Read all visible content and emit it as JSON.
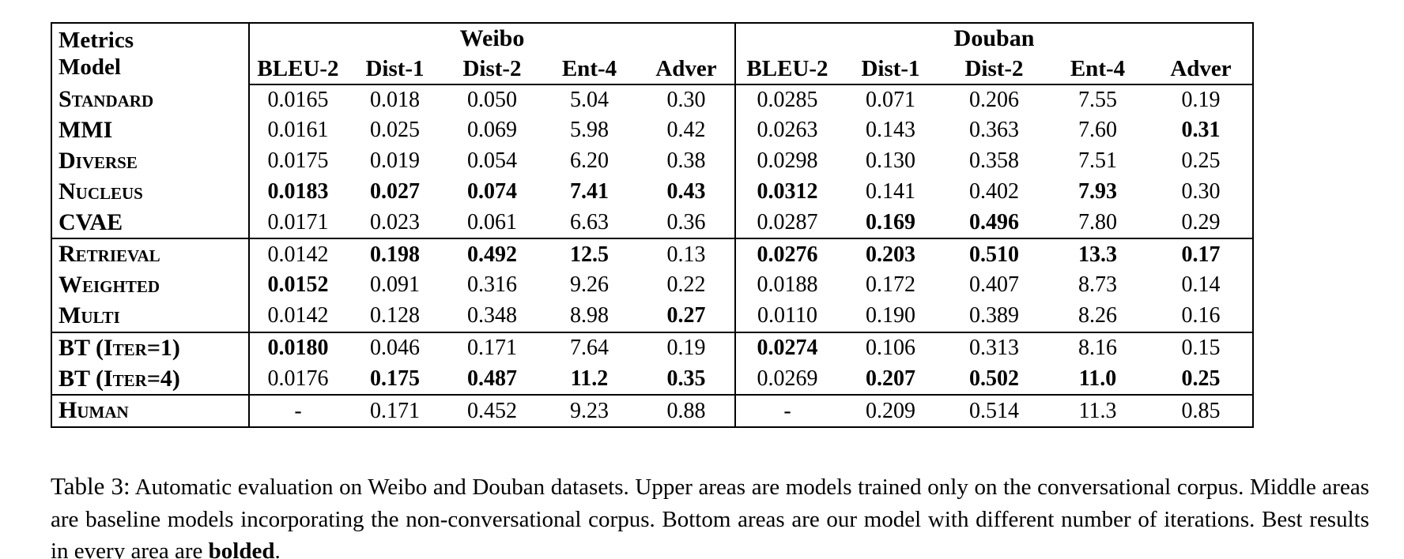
{
  "table": {
    "corner": {
      "line1": "Metrics",
      "line2": "Model"
    },
    "group_headers": [
      "Weibo",
      "Douban"
    ],
    "metric_columns": [
      "BLEU-2",
      "Dist-1",
      "Dist-2",
      "Ent-4",
      "Adver"
    ],
    "sections": [
      {
        "rows": [
          {
            "model": "Standard",
            "cells": [
              {
                "t": "0.0165",
                "b": false
              },
              {
                "t": "0.018",
                "b": false
              },
              {
                "t": "0.050",
                "b": false
              },
              {
                "t": "5.04",
                "b": false
              },
              {
                "t": "0.30",
                "b": false
              },
              {
                "t": "0.0285",
                "b": false
              },
              {
                "t": "0.071",
                "b": false
              },
              {
                "t": "0.206",
                "b": false
              },
              {
                "t": "7.55",
                "b": false
              },
              {
                "t": "0.19",
                "b": false
              }
            ]
          },
          {
            "model": "MMI",
            "cells": [
              {
                "t": "0.0161",
                "b": false
              },
              {
                "t": "0.025",
                "b": false
              },
              {
                "t": "0.069",
                "b": false
              },
              {
                "t": "5.98",
                "b": false
              },
              {
                "t": "0.42",
                "b": false
              },
              {
                "t": "0.0263",
                "b": false
              },
              {
                "t": "0.143",
                "b": false
              },
              {
                "t": "0.363",
                "b": false
              },
              {
                "t": "7.60",
                "b": false
              },
              {
                "t": "0.31",
                "b": true
              }
            ]
          },
          {
            "model": "Diverse",
            "cells": [
              {
                "t": "0.0175",
                "b": false
              },
              {
                "t": "0.019",
                "b": false
              },
              {
                "t": "0.054",
                "b": false
              },
              {
                "t": "6.20",
                "b": false
              },
              {
                "t": "0.38",
                "b": false
              },
              {
                "t": "0.0298",
                "b": false
              },
              {
                "t": "0.130",
                "b": false
              },
              {
                "t": "0.358",
                "b": false
              },
              {
                "t": "7.51",
                "b": false
              },
              {
                "t": "0.25",
                "b": false
              }
            ]
          },
          {
            "model": "Nucleus",
            "cells": [
              {
                "t": "0.0183",
                "b": true
              },
              {
                "t": "0.027",
                "b": true
              },
              {
                "t": "0.074",
                "b": true
              },
              {
                "t": "7.41",
                "b": true
              },
              {
                "t": "0.43",
                "b": true
              },
              {
                "t": "0.0312",
                "b": true
              },
              {
                "t": "0.141",
                "b": false
              },
              {
                "t": "0.402",
                "b": false
              },
              {
                "t": "7.93",
                "b": true
              },
              {
                "t": "0.30",
                "b": false
              }
            ]
          },
          {
            "model": "CVAE",
            "cells": [
              {
                "t": "0.0171",
                "b": false
              },
              {
                "t": "0.023",
                "b": false
              },
              {
                "t": "0.061",
                "b": false
              },
              {
                "t": "6.63",
                "b": false
              },
              {
                "t": "0.36",
                "b": false
              },
              {
                "t": "0.0287",
                "b": false
              },
              {
                "t": "0.169",
                "b": true
              },
              {
                "t": "0.496",
                "b": true
              },
              {
                "t": "7.80",
                "b": false
              },
              {
                "t": "0.29",
                "b": false
              }
            ]
          }
        ]
      },
      {
        "rows": [
          {
            "model": "Retrieval",
            "cells": [
              {
                "t": "0.0142",
                "b": false
              },
              {
                "t": "0.198",
                "b": true
              },
              {
                "t": "0.492",
                "b": true
              },
              {
                "t": "12.5",
                "b": true
              },
              {
                "t": "0.13",
                "b": false
              },
              {
                "t": "0.0276",
                "b": true
              },
              {
                "t": "0.203",
                "b": true
              },
              {
                "t": "0.510",
                "b": true
              },
              {
                "t": "13.3",
                "b": true
              },
              {
                "t": "0.17",
                "b": true
              }
            ]
          },
          {
            "model": "Weighted",
            "cells": [
              {
                "t": "0.0152",
                "b": true
              },
              {
                "t": "0.091",
                "b": false
              },
              {
                "t": "0.316",
                "b": false
              },
              {
                "t": "9.26",
                "b": false
              },
              {
                "t": "0.22",
                "b": false
              },
              {
                "t": "0.0188",
                "b": false
              },
              {
                "t": "0.172",
                "b": false
              },
              {
                "t": "0.407",
                "b": false
              },
              {
                "t": "8.73",
                "b": false
              },
              {
                "t": "0.14",
                "b": false
              }
            ]
          },
          {
            "model": "Multi",
            "cells": [
              {
                "t": "0.0142",
                "b": false
              },
              {
                "t": "0.128",
                "b": false
              },
              {
                "t": "0.348",
                "b": false
              },
              {
                "t": "8.98",
                "b": false
              },
              {
                "t": "0.27",
                "b": true
              },
              {
                "t": "0.0110",
                "b": false
              },
              {
                "t": "0.190",
                "b": false
              },
              {
                "t": "0.389",
                "b": false
              },
              {
                "t": "8.26",
                "b": false
              },
              {
                "t": "0.16",
                "b": false
              }
            ]
          }
        ]
      },
      {
        "rows": [
          {
            "model": "BT (Iter=1)",
            "cells": [
              {
                "t": "0.0180",
                "b": true
              },
              {
                "t": "0.046",
                "b": false
              },
              {
                "t": "0.171",
                "b": false
              },
              {
                "t": "7.64",
                "b": false
              },
              {
                "t": "0.19",
                "b": false
              },
              {
                "t": "0.0274",
                "b": true
              },
              {
                "t": "0.106",
                "b": false
              },
              {
                "t": "0.313",
                "b": false
              },
              {
                "t": "8.16",
                "b": false
              },
              {
                "t": "0.15",
                "b": false
              }
            ]
          },
          {
            "model": "BT (Iter=4)",
            "cells": [
              {
                "t": "0.0176",
                "b": false
              },
              {
                "t": "0.175",
                "b": true
              },
              {
                "t": "0.487",
                "b": true
              },
              {
                "t": "11.2",
                "b": true
              },
              {
                "t": "0.35",
                "b": true
              },
              {
                "t": "0.0269",
                "b": false
              },
              {
                "t": "0.207",
                "b": true
              },
              {
                "t": "0.502",
                "b": true
              },
              {
                "t": "11.0",
                "b": true
              },
              {
                "t": "0.25",
                "b": true
              }
            ]
          }
        ]
      },
      {
        "rows": [
          {
            "model": "Human",
            "cells": [
              {
                "t": "-",
                "b": false
              },
              {
                "t": "0.171",
                "b": false
              },
              {
                "t": "0.452",
                "b": false
              },
              {
                "t": "9.23",
                "b": false
              },
              {
                "t": "0.88",
                "b": false
              },
              {
                "t": "-",
                "b": false
              },
              {
                "t": "0.209",
                "b": false
              },
              {
                "t": "0.514",
                "b": false
              },
              {
                "t": "11.3",
                "b": false
              },
              {
                "t": "0.85",
                "b": false
              }
            ]
          }
        ]
      }
    ]
  },
  "caption": {
    "label": "Table 3:",
    "text": "Automatic evaluation on Weibo and Douban datasets. Upper areas are models trained only on the conversational corpus. Middle areas are baseline models incorporating the non-conversational corpus. Bottom areas are our model with different number of iterations. Best results in every area are ",
    "bold_word": "bolded",
    "suffix": "."
  }
}
